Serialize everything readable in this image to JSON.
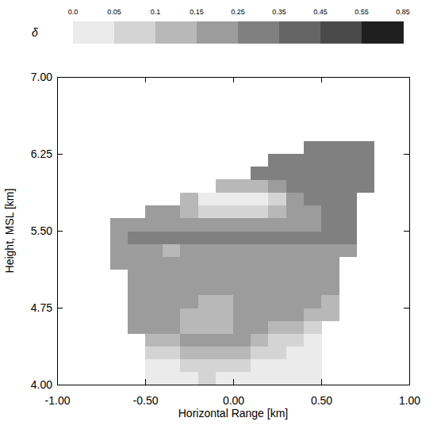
{
  "chart_data": {
    "type": "heatmap",
    "x_label": "Horizontal Range [km]",
    "y_label": "Height, MSL [km]",
    "xlim": [
      -1,
      1
    ],
    "ylim": [
      4,
      7
    ],
    "xticks": [
      {
        "value": -1,
        "label": "-1.00"
      },
      {
        "value": -0.5,
        "label": "-0.50"
      },
      {
        "value": 0,
        "label": "0.00"
      },
      {
        "value": 0.5,
        "label": "0.50"
      },
      {
        "value": 1,
        "label": "1.00"
      }
    ],
    "yticks": [
      {
        "value": 4,
        "label": "4.00"
      },
      {
        "value": 4.75,
        "label": "4.75"
      },
      {
        "value": 5.5,
        "label": "5.50"
      },
      {
        "value": 6.25,
        "label": "6.25"
      },
      {
        "value": 7,
        "label": "7.00"
      }
    ],
    "x": [
      -0.75,
      -0.65,
      -0.55,
      -0.45,
      -0.35,
      -0.25,
      -0.15,
      -0.05,
      0.05,
      0.15,
      0.25,
      0.35,
      0.45,
      0.55,
      0.65,
      0.75,
      0.85
    ],
    "y": [
      4.0625,
      4.1875,
      4.3125,
      4.4375,
      4.5625,
      4.6875,
      4.8125,
      4.9375,
      5.0625,
      5.1875,
      5.3125,
      5.4375,
      5.5625,
      5.6875,
      5.8125,
      5.9375,
      6.0625,
      6.1875,
      6.3125
    ],
    "values": [
      [
        null,
        null,
        null,
        0.03,
        0.03,
        0.04,
        0.05,
        0.04,
        0.03,
        0.03,
        0.02,
        0.03,
        0.02,
        null,
        null,
        null,
        null
      ],
      [
        null,
        null,
        null,
        0.04,
        0.04,
        0.06,
        0.08,
        0.07,
        0.06,
        0.04,
        0.03,
        0.03,
        0.02,
        null,
        null,
        null,
        null
      ],
      [
        null,
        null,
        null,
        0.06,
        0.07,
        0.1,
        0.12,
        0.13,
        0.12,
        0.08,
        0.06,
        0.04,
        0.03,
        null,
        null,
        null,
        null
      ],
      [
        null,
        null,
        null,
        0.12,
        0.14,
        0.16,
        0.17,
        0.17,
        0.16,
        0.13,
        0.09,
        0.06,
        0.04,
        null,
        null,
        null,
        null
      ],
      [
        null,
        null,
        0.17,
        0.18,
        0.18,
        0.13,
        0.12,
        0.14,
        0.16,
        0.17,
        0.14,
        0.1,
        0.08,
        null,
        null,
        null,
        null
      ],
      [
        null,
        null,
        0.18,
        0.18,
        0.17,
        0.13,
        0.12,
        0.13,
        0.16,
        0.18,
        0.17,
        0.15,
        0.12,
        0.1,
        null,
        null,
        null
      ],
      [
        null,
        null,
        0.19,
        0.18,
        0.17,
        0.16,
        0.14,
        0.13,
        0.15,
        0.17,
        0.18,
        0.17,
        0.16,
        0.13,
        null,
        null,
        null
      ],
      [
        null,
        null,
        0.2,
        0.19,
        0.18,
        0.18,
        0.17,
        0.16,
        0.16,
        0.17,
        0.18,
        0.18,
        0.17,
        0.16,
        null,
        null,
        null
      ],
      [
        null,
        null,
        0.2,
        0.2,
        0.19,
        0.19,
        0.18,
        0.17,
        0.17,
        0.18,
        0.18,
        0.19,
        0.18,
        0.17,
        null,
        null,
        null
      ],
      [
        null,
        0.2,
        0.2,
        0.19,
        0.18,
        0.18,
        0.17,
        0.17,
        0.17,
        0.18,
        0.18,
        0.19,
        0.18,
        0.18,
        null,
        null,
        null
      ],
      [
        null,
        0.2,
        0.21,
        0.2,
        0.12,
        0.2,
        0.21,
        0.22,
        0.22,
        0.22,
        0.23,
        0.23,
        0.22,
        0.22,
        0.22,
        null,
        null
      ],
      [
        null,
        0.22,
        0.26,
        0.27,
        0.27,
        0.28,
        0.28,
        0.28,
        0.29,
        0.3,
        0.3,
        0.3,
        0.29,
        0.28,
        0.28,
        null,
        null
      ],
      [
        null,
        0.19,
        0.2,
        0.21,
        0.21,
        0.22,
        0.22,
        0.22,
        0.21,
        0.21,
        0.22,
        0.23,
        0.24,
        0.25,
        0.25,
        null,
        null
      ],
      [
        null,
        null,
        null,
        0.21,
        0.2,
        0.12,
        0.06,
        0.05,
        0.05,
        0.06,
        0.1,
        0.2,
        0.24,
        0.25,
        0.26,
        null,
        null
      ],
      [
        null,
        null,
        null,
        null,
        null,
        0.1,
        0.04,
        0.03,
        0.03,
        0.04,
        0.08,
        0.18,
        0.25,
        0.27,
        0.28,
        null,
        null
      ],
      [
        null,
        null,
        null,
        null,
        null,
        null,
        null,
        0.14,
        0.1,
        0.12,
        0.2,
        0.25,
        0.28,
        0.29,
        0.3,
        0.3,
        null
      ],
      [
        null,
        null,
        null,
        null,
        null,
        null,
        null,
        null,
        null,
        0.26,
        0.28,
        0.3,
        0.3,
        0.31,
        0.32,
        0.31,
        null
      ],
      [
        null,
        null,
        null,
        null,
        null,
        null,
        null,
        null,
        null,
        null,
        0.3,
        0.31,
        0.32,
        0.33,
        0.32,
        0.31,
        null
      ],
      [
        null,
        null,
        null,
        null,
        null,
        null,
        null,
        null,
        null,
        null,
        null,
        null,
        0.3,
        0.32,
        0.33,
        0.3,
        null
      ]
    ],
    "colors": [
      "#ebebeb",
      "#d4d4d4",
      "#b8b8b8",
      "#9c9c9c",
      "#808080",
      "#656565",
      "#4a4a4a",
      "#1f1f1f"
    ],
    "colorbar": {
      "label": "δ",
      "range": [
        0,
        0.85
      ],
      "ticks": [
        {
          "value": 0,
          "label": "0.0"
        },
        0.05,
        0.1,
        0.15,
        0.25,
        0.35,
        0.45,
        0.55,
        0.85
      ]
    }
  }
}
